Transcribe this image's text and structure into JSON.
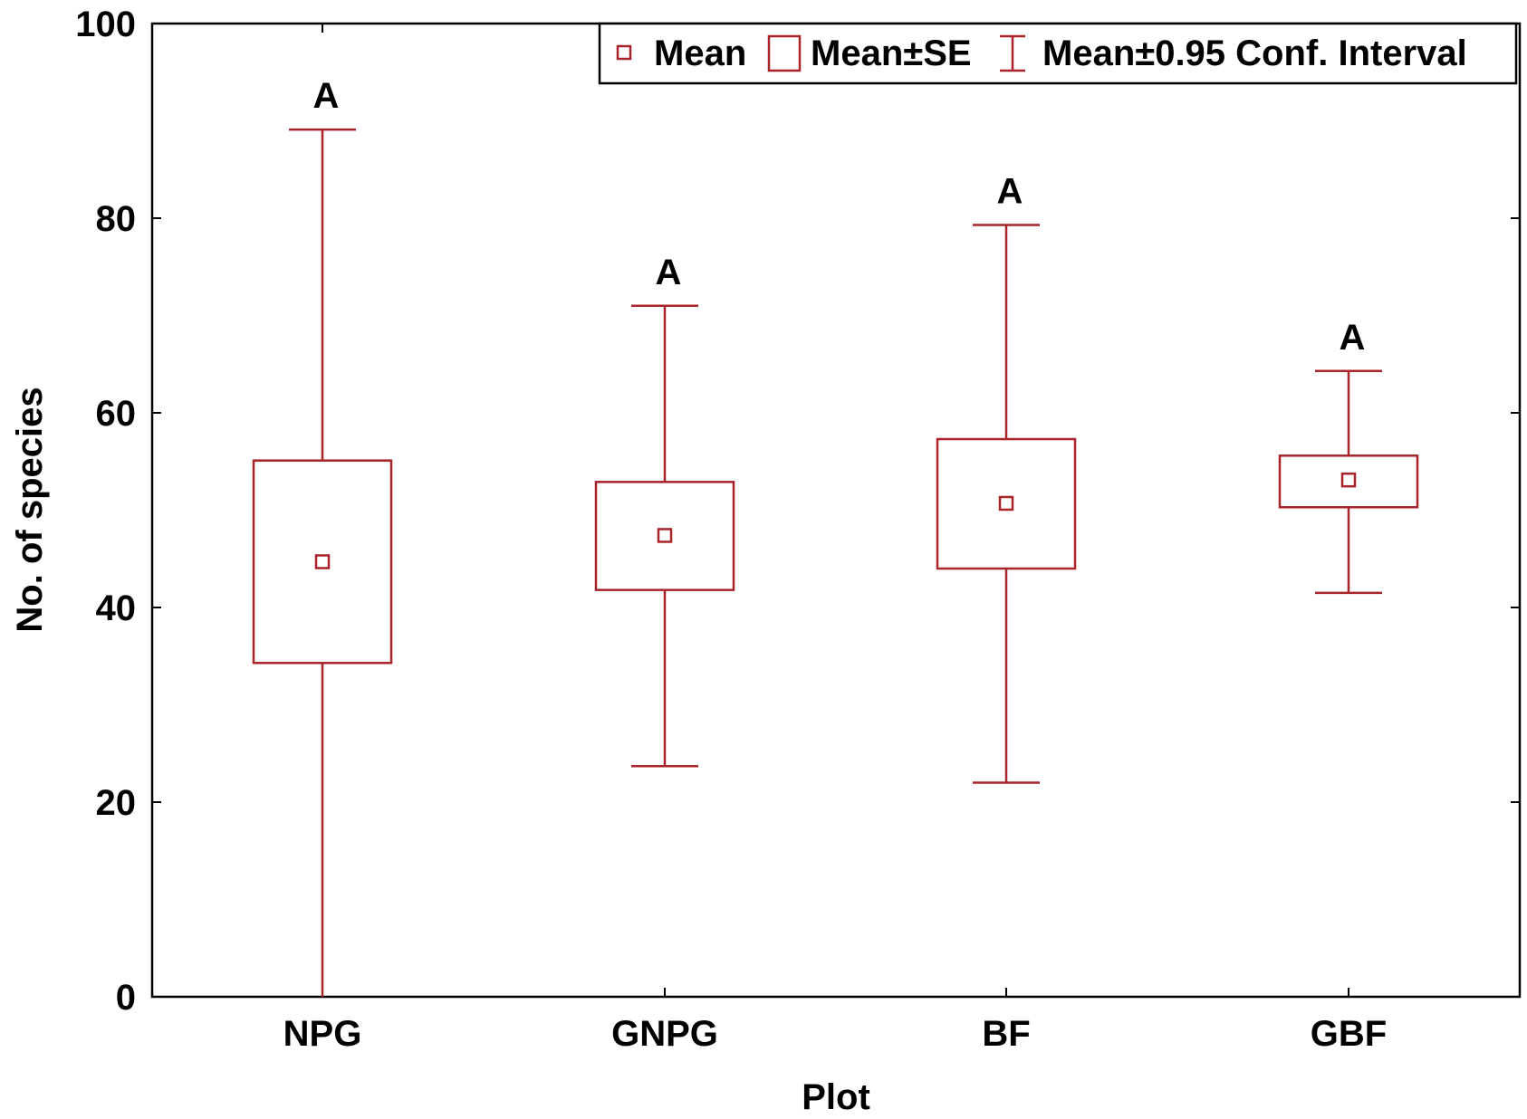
{
  "chart_data": {
    "type": "box",
    "xlabel": "Plot",
    "ylabel": "No. of species",
    "ylim": [
      0,
      100
    ],
    "yticks": [
      0,
      20,
      40,
      60,
      80,
      100
    ],
    "grid": false,
    "legend_position": "top-right",
    "legend": {
      "mean": "Mean",
      "se": "Mean±SE",
      "ci": "Mean±0.95 Conf. Interval"
    },
    "categories": [
      "NPG",
      "GNPG",
      "BF",
      "GBF"
    ],
    "series": [
      {
        "category": "NPG",
        "mean": 44.7,
        "se_low": 34.3,
        "se_high": 55.1,
        "ci_low": 0.0,
        "ci_high": 89.1,
        "group_letter": "A"
      },
      {
        "category": "GNPG",
        "mean": 47.4,
        "se_low": 41.8,
        "se_high": 52.9,
        "ci_low": 23.7,
        "ci_high": 71.0,
        "group_letter": "A"
      },
      {
        "category": "BF",
        "mean": 50.7,
        "se_low": 44.0,
        "se_high": 57.3,
        "ci_low": 22.0,
        "ci_high": 79.3,
        "group_letter": "A"
      },
      {
        "category": "GBF",
        "mean": 53.1,
        "se_low": 50.3,
        "se_high": 55.6,
        "ci_low": 41.5,
        "ci_high": 64.3,
        "group_letter": "A"
      }
    ],
    "colors": {
      "series": "#a8232a",
      "axis": "#000000"
    }
  }
}
